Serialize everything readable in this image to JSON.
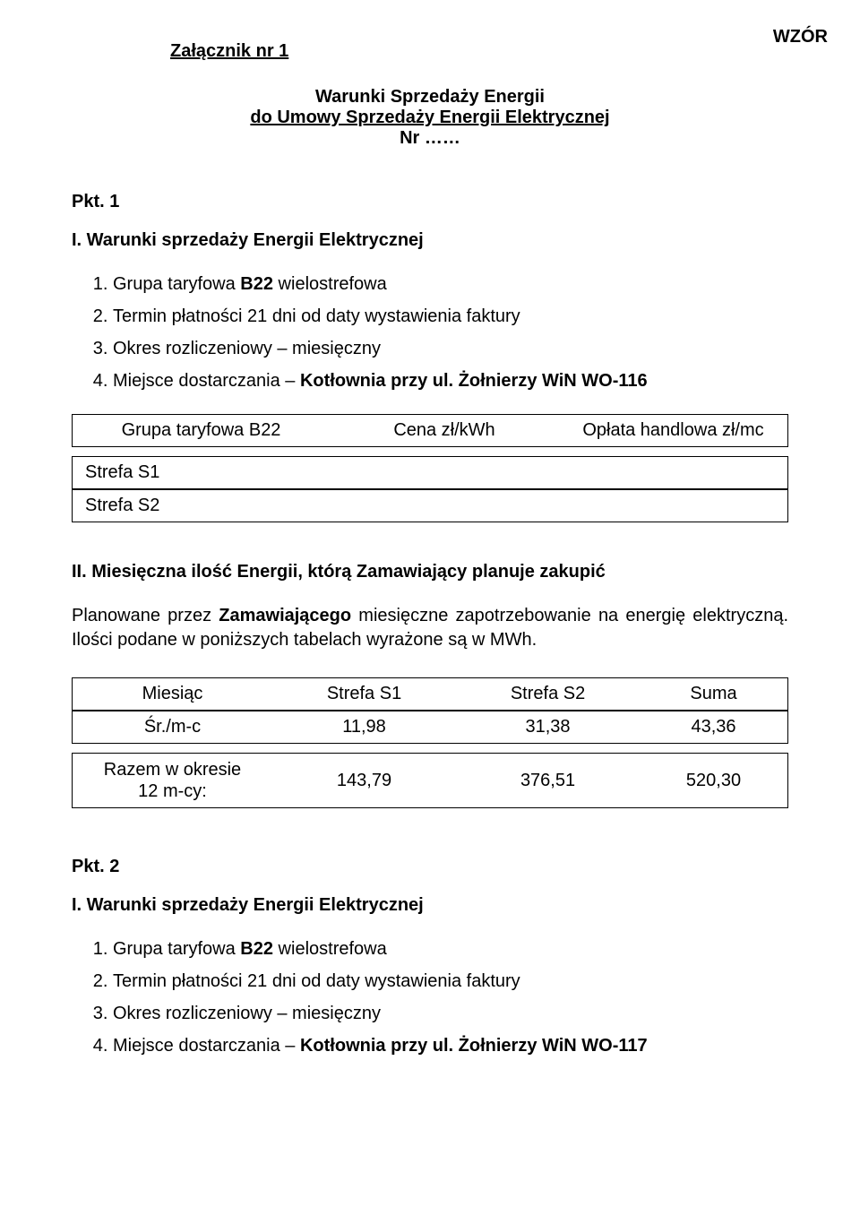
{
  "header": {
    "wzor": "WZÓR",
    "attachment_title": "Załącznik nr 1",
    "title_line1": "Warunki Sprzedaży Energii",
    "title_line2": "do Umowy Sprzedaży Energii Elektrycznej",
    "title_line3": "Nr ……"
  },
  "pkt1": {
    "label": "Pkt. 1",
    "section_I_title": "I. Warunki sprzedaży Energii Elektrycznej",
    "list": {
      "i1_pre": "Grupa taryfowa ",
      "i1_bold": "B22",
      "i1_post": " wielostrefowa",
      "i2": "Termin płatności 21 dni od daty wystawienia faktury",
      "i3": "Okres rozliczeniowy – miesięczny",
      "i4_pre": "Miejsce dostarczania – ",
      "i4_bold": "Kotłownia przy ul. Żołnierzy WiN WO-116"
    },
    "tariff_table": {
      "columns": [
        "Grupa taryfowa B22",
        "Cena zł/kWh",
        "Opłata handlowa zł/mc"
      ],
      "rows": [
        {
          "label": "Strefa S1",
          "price": "",
          "fee": ""
        },
        {
          "label": "Strefa S2",
          "price": "",
          "fee": ""
        }
      ]
    },
    "section_II_title": "II. Miesięczna ilość Energii, którą Zamawiający planuje zakupić",
    "paragraph_pre": "Planowane przez ",
    "paragraph_bold": "Zamawiającego",
    "paragraph_post": " miesięczne zapotrzebowanie na energię elektryczną. Ilości podane w poniższych tabelach wyrażone są w MWh.",
    "energy_table": {
      "columns": [
        "Miesiąc",
        "Strefa S1",
        "Strefa S2",
        "Suma"
      ],
      "rows": [
        {
          "label": "Śr./m-c",
          "s1": "11,98",
          "s2": "31,38",
          "sum": "43,36"
        },
        {
          "label_line1": "Razem w okresie",
          "label_line2": "12 m-cy:",
          "s1": "143,79",
          "s2": "376,51",
          "sum": "520,30"
        }
      ]
    }
  },
  "pkt2": {
    "label": "Pkt. 2",
    "section_I_title": "I. Warunki sprzedaży Energii Elektrycznej",
    "list": {
      "i1_pre": "Grupa taryfowa ",
      "i1_bold": "B22",
      "i1_post": " wielostrefowa",
      "i2": "Termin płatności 21 dni od daty wystawienia faktury",
      "i3": "Okres rozliczeniowy – miesięczny",
      "i4_pre": "Miejsce dostarczania – ",
      "i4_bold": "Kotłownia przy ul. Żołnierzy WiN WO-117"
    }
  },
  "colors": {
    "text": "#000000",
    "background": "#ffffff",
    "border": "#000000"
  }
}
